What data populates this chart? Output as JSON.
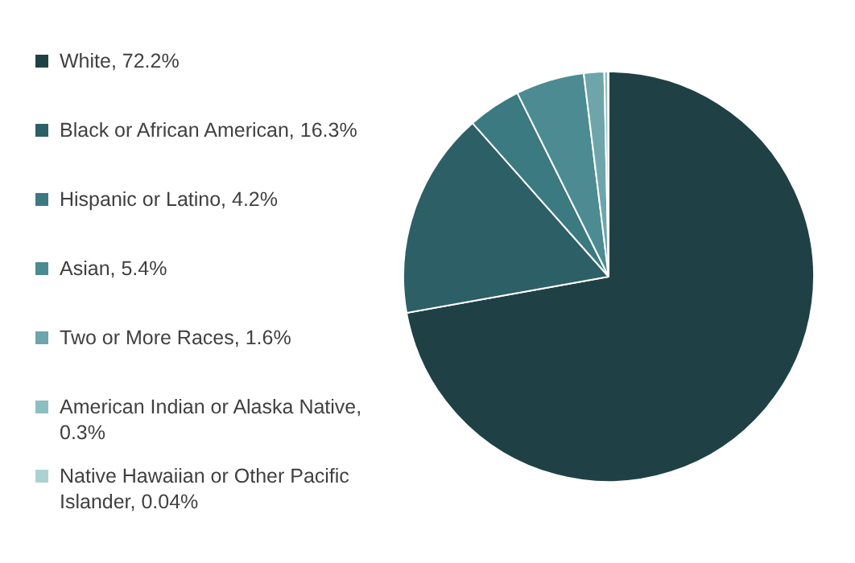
{
  "chart_data": {
    "type": "pie",
    "legend": "left",
    "categories": [
      "White, 72.2%",
      "Black or African American, 16.3%",
      "Hispanic or Latino, 4.2%",
      "Asian, 5.4%",
      "Two or More Races, 1.6%",
      "American Indian or Alaska Native, 0.3%",
      "Native Hawaiian or Other Pacific Islander, 0.04%"
    ],
    "values": [
      72.2,
      16.3,
      4.2,
      5.4,
      1.6,
      0.3,
      0.04
    ],
    "colors": [
      "#1f4146",
      "#2d5f66",
      "#3b7a80",
      "#4b8b91",
      "#6ea5aa",
      "#8dbec2",
      "#aad2d5"
    ]
  }
}
